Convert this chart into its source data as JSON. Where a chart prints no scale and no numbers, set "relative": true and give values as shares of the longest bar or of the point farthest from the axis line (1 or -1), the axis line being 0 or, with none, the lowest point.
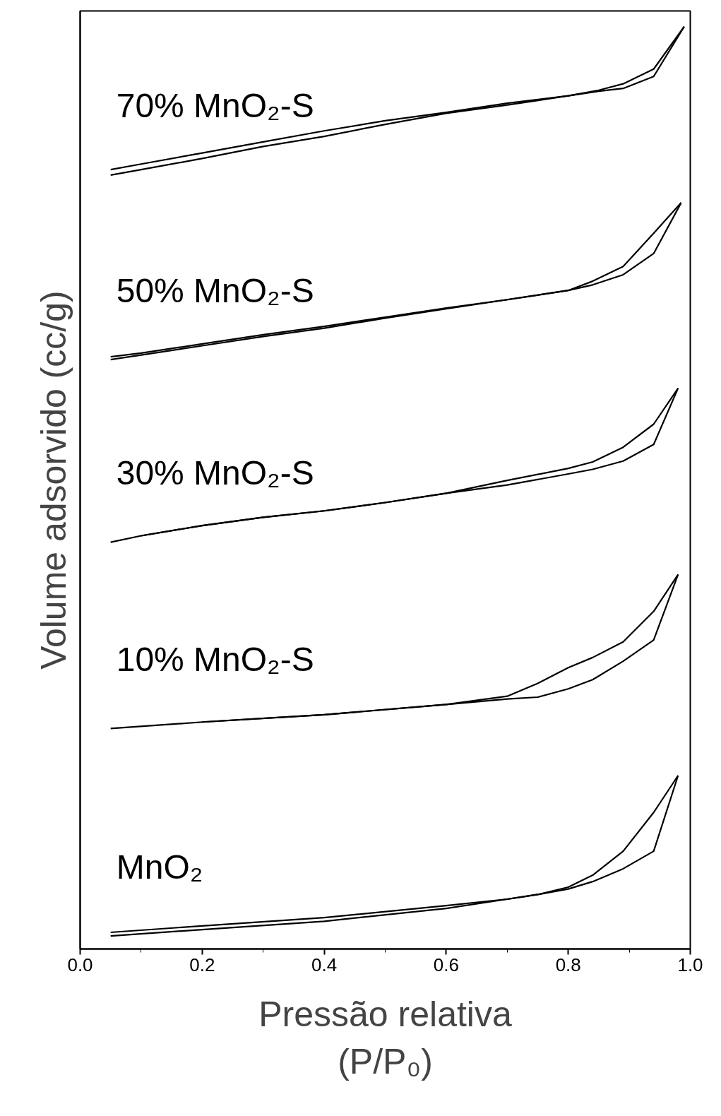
{
  "chart_data": {
    "type": "line",
    "relative": true,
    "xlabel": "Pressão relativa\n(P/P₀)",
    "ylabel": "Volume adsorvido (cc/g)",
    "xlim": [
      0,
      1
    ],
    "xticks": [
      {
        "value": 0,
        "label": "0.0"
      },
      {
        "value": 0.1,
        "label": null
      },
      {
        "value": 0.2,
        "label": "0.2"
      },
      {
        "value": 0.3,
        "label": null
      },
      {
        "value": 0.4,
        "label": "0.4"
      },
      {
        "value": 0.5,
        "label": null
      },
      {
        "value": 0.6,
        "label": "0.6"
      },
      {
        "value": 0.7,
        "label": null
      },
      {
        "value": 0.8,
        "label": "0.8"
      },
      {
        "value": 0.9,
        "label": null
      },
      {
        "value": 1,
        "label": "1.0"
      }
    ],
    "grid": false,
    "marker": "none",
    "line_style": "solid",
    "series": [
      {
        "name": "70% MnO₂-S",
        "color": "#000000",
        "x": [
          0.05,
          0.1,
          0.2,
          0.3,
          0.4,
          0.5,
          0.6,
          0.7,
          0.8,
          0.85,
          0.89,
          0.94,
          0.99
        ],
        "values": [
          0.839,
          0.845,
          0.857,
          0.87,
          0.881,
          0.894,
          0.906,
          0.915,
          0.925,
          0.93,
          0.933,
          0.946,
          1.0
        ]
      },
      {
        "color": "#000000",
        "x": [
          0.99,
          0.94,
          0.89,
          0.85,
          0.8,
          0.7,
          0.6,
          0.5,
          0.4,
          0.3,
          0.2,
          0.1,
          0.05
        ],
        "values": [
          1.0,
          0.954,
          0.938,
          0.931,
          0.925,
          0.917,
          0.907,
          0.898,
          0.887,
          0.875,
          0.863,
          0.851,
          0.845
        ]
      },
      {
        "name": "50% MnO₂-S",
        "color": "#000000",
        "x": [
          0.05,
          0.1,
          0.2,
          0.3,
          0.4,
          0.5,
          0.6,
          0.7,
          0.8,
          0.84,
          0.89,
          0.94,
          0.985
        ],
        "values": [
          0.639,
          0.644,
          0.654,
          0.664,
          0.673,
          0.684,
          0.694,
          0.704,
          0.714,
          0.72,
          0.731,
          0.754,
          0.809
        ]
      },
      {
        "color": "#000000",
        "x": [
          0.985,
          0.94,
          0.89,
          0.84,
          0.8,
          0.7,
          0.6,
          0.5,
          0.4,
          0.3,
          0.2,
          0.1,
          0.05
        ],
        "values": [
          0.809,
          0.776,
          0.74,
          0.724,
          0.714,
          0.704,
          0.695,
          0.685,
          0.675,
          0.666,
          0.656,
          0.646,
          0.642
        ]
      },
      {
        "name": "30% MnO₂-S",
        "color": "#000000",
        "x": [
          0.05,
          0.1,
          0.2,
          0.3,
          0.4,
          0.5,
          0.6,
          0.7,
          0.8,
          0.84,
          0.89,
          0.94,
          0.98
        ],
        "values": [
          0.441,
          0.448,
          0.459,
          0.468,
          0.475,
          0.484,
          0.494,
          0.503,
          0.515,
          0.52,
          0.529,
          0.547,
          0.608
        ]
      },
      {
        "color": "#000000",
        "x": [
          0.98,
          0.94,
          0.89,
          0.84,
          0.8,
          0.7,
          0.6,
          0.5,
          0.4,
          0.3,
          0.2,
          0.1
        ],
        "values": [
          0.608,
          0.569,
          0.544,
          0.528,
          0.521,
          0.508,
          0.494,
          0.484,
          0.475,
          0.468,
          0.459,
          0.448
        ]
      },
      {
        "name": "10% MnO₂-S",
        "color": "#000000",
        "x": [
          0.05,
          0.2,
          0.4,
          0.6,
          0.7,
          0.75,
          0.8,
          0.84,
          0.89,
          0.94,
          0.98
        ],
        "values": [
          0.239,
          0.246,
          0.254,
          0.265,
          0.271,
          0.273,
          0.282,
          0.292,
          0.312,
          0.335,
          0.406
        ]
      },
      {
        "color": "#000000",
        "x": [
          0.98,
          0.94,
          0.89,
          0.84,
          0.8,
          0.75,
          0.7,
          0.6,
          0.4,
          0.2
        ],
        "values": [
          0.406,
          0.366,
          0.333,
          0.316,
          0.305,
          0.288,
          0.274,
          0.265,
          0.254,
          0.246
        ]
      },
      {
        "name": "MnO₂",
        "color": "#000000",
        "x": [
          0.05,
          0.2,
          0.4,
          0.6,
          0.7,
          0.75,
          0.8,
          0.84,
          0.89,
          0.94,
          0.98
        ],
        "values": [
          0.014,
          0.021,
          0.03,
          0.044,
          0.054,
          0.059,
          0.065,
          0.073,
          0.087,
          0.106,
          0.188
        ]
      },
      {
        "color": "#000000",
        "x": [
          0.98,
          0.94,
          0.89,
          0.84,
          0.8,
          0.75,
          0.7,
          0.6,
          0.4,
          0.2,
          0.05
        ],
        "values": [
          0.188,
          0.148,
          0.106,
          0.08,
          0.067,
          0.059,
          0.054,
          0.047,
          0.034,
          0.025,
          0.018
        ]
      }
    ]
  }
}
